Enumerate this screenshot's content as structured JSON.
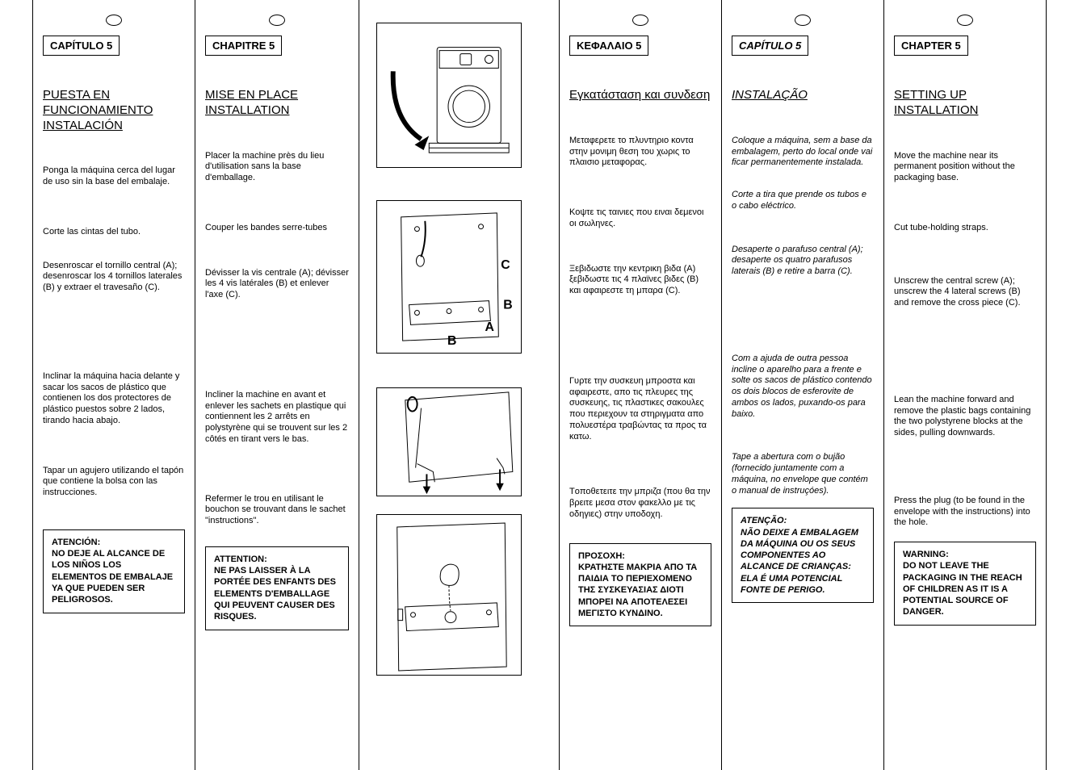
{
  "columns": {
    "es": {
      "chapter": "CAPÍTULO 5",
      "title": "PUESTA EN FUNCIONAMIENTO INSTALACIÓN",
      "p1": "Ponga la máquina cerca del lugar de uso sin la base del embalaje.",
      "p2": "Corte las cintas del tubo.",
      "p3": "Desenroscar el tornillo central (A); desenroscar los 4 tornillos laterales (B) y extraer el travesaño (C).",
      "p4": "Inclinar la máquina hacia delante y sacar los sacos de plástico que contienen los dos protectores de plástico puestos sobre 2 lados, tirando hacia abajo.",
      "p5": "Tapar un agujero utilizando el tapón que contiene la bolsa con las instrucciones.",
      "warning": "ATENCIÓN:\nNO DEJE AL ALCANCE DE LOS NIÑOS LOS ELEMENTOS DE EMBALAJE YA QUE PUEDEN SER PELIGROSOS."
    },
    "fr": {
      "chapter": "CHAPITRE 5",
      "title": "MISE EN PLACE INSTALLATION",
      "p1": "Placer la machine près du lieu d'utilisation sans la base d'emballage.",
      "p2": "Couper les bandes serre-tubes",
      "p3": "Dévisser la vis centrale (A); dévisser les 4 vis latérales (B) et enlever l'axe (C).",
      "p4": "Incliner la machine en avant et enlever les sachets en plastique qui contiennent les 2 arrêts en polystyrène qui se trouvent sur les 2 côtés en tirant vers le bas.",
      "p5": "Refermer le trou en utilisant le bouchon se trouvant dans le sachet \"instructions\".",
      "warning": "ATTENTION:\nNE PAS LAISSER À LA PORTÉE DES ENFANTS DES ELEMENTS D'EMBALLAGE QUI PEUVENT CAUSER DES RISQUES."
    },
    "el": {
      "chapter": "KΕΦΑΛΑΙΟ 5",
      "title": "Εγκατάσταση και συνδεση",
      "p1": "Μεταφερετε το πλυντηριο κοντα στην μονιμη θεση του χωρις το πλαισιο μεταφορας.",
      "p2": "Κοψτε τις ταινιες που ειναι δεμενοι οι σωληνες.",
      "p3": "Ξεβιδωστε την κεντρικη βιδα (A) ξεβιδωστε τις 4 πλαϊνες βιδες (B) και αφαιρεστε τη μπαρα (C).",
      "p4": "Γυρτε την συσκευη μπροστα και αφαιρεστε, απο τις πλευρες της συσκευης, τις πλαστικες σακουλες που περιεχουν τα στηριγματα απο πολυεστέρα τραβώντας τα προς τα κατω.",
      "p5": "Τoπoθετειτε την μπριζα (που θα την βρειτε μεσα στoν φακελλo με τις oδηγιες) στην υποδοχη.",
      "warning": "ΠΡΟΣΟΧΗ:\nΚΡΑΤΗΣΤΕ ΜΑΚΡΙΑ ΑΠΟ ΤΑ ΠΑΙΔΙΑ ΤΟ ΠΕΡΙΕΧΟΜΕΝΟ ΤΗΣ ΣΥΣΚΕΥΑΣΙΑΣ ΔΙΟΤΙ ΜΠΟΡΕΙ ΝΑ ΑΠΟΤΕΛΕΣΕΙ ΜΕΓΙΣΤΟ ΚΥΝΔΙΝΟ."
    },
    "pt": {
      "chapter": "CAPÍTULO 5",
      "title": "INSTALAÇÃO",
      "p1": "Coloque a máquina, sem a base da embalagem, perto do local onde vai ficar permanentemente instalada.",
      "p2": "Corte a tira que prende os tubos e o cabo eléctrico.",
      "p3": "Desaperte o parafuso central (A); desaperte os quatro parafusos laterais (B) e retire a barra (C).",
      "p4": "Com a ajuda de outra pessoa incline o aparelho para a frente e solte os sacos de plástico contendo os dois blocos de esferovite de ambos os lados, puxando-os para baixo.",
      "p5": "Tape a abertura com o bujão (fornecido juntamente com a máquina, no envelope que contém o manual de instruçóes).",
      "warning": "ATENÇÃO:\nNÃO DEIXE A EMBALAGEM DA MÁQUINA OU OS SEUS COMPONENTES AO ALCANCE DE CRIANÇAS: ELA É UMA POTENCIAL FONTE DE PERIGO."
    },
    "en": {
      "chapter": "CHAPTER 5",
      "title": "SETTING UP INSTALLATION",
      "p1": "Move the machine near its permanent position without the packaging base.",
      "p2": "Cut tube-holding straps.",
      "p3": "Unscrew the central screw (A); unscrew the 4 lateral screws (B) and remove the cross piece (C).",
      "p4": "Lean the machine forward and remove the plastic bags containing the two polystyrene blocks at the sides, pulling downwards.",
      "p5": "Press the plug (to be found in the envelope with the instructions) into the hole.",
      "warning": "WARNING:\nDO NOT LEAVE THE PACKAGING IN THE REACH OF CHILDREN AS IT IS A POTENTIAL SOURCE OF DANGER."
    }
  },
  "labels": {
    "A": "A",
    "B": "B",
    "C": "C",
    "Bt": "B"
  }
}
